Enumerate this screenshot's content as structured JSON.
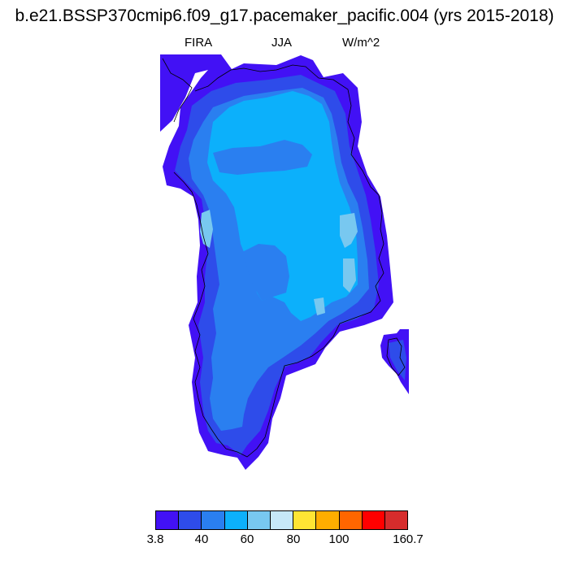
{
  "title": "b.e21.BSSP370cmip6.f09_g17.pacemaker_pacific.004 (yrs 2015-2018)",
  "variable": "FIRA",
  "season": "JJA",
  "units": "W/m^2",
  "colorbar": {
    "colors": [
      "#4211f5",
      "#2e4cea",
      "#2a7ff0",
      "#0cb0fb",
      "#78c8f0",
      "#c6e8f8",
      "#ffe534",
      "#ffad00",
      "#ff6600",
      "#ff0000",
      "#d62c2c"
    ],
    "tick_labels": [
      "3.8",
      "40",
      "60",
      "80",
      "100",
      "160.7"
    ]
  },
  "map_regions": [
    {
      "name": "violet-margin",
      "color": "#4211f5"
    },
    {
      "name": "blue-band",
      "color": "#2e4cea"
    },
    {
      "name": "mid-blue",
      "color": "#2a7ff0"
    },
    {
      "name": "cyan-interior",
      "color": "#0cb0fb"
    },
    {
      "name": "light-blue-patches",
      "color": "#78c8f0"
    }
  ]
}
